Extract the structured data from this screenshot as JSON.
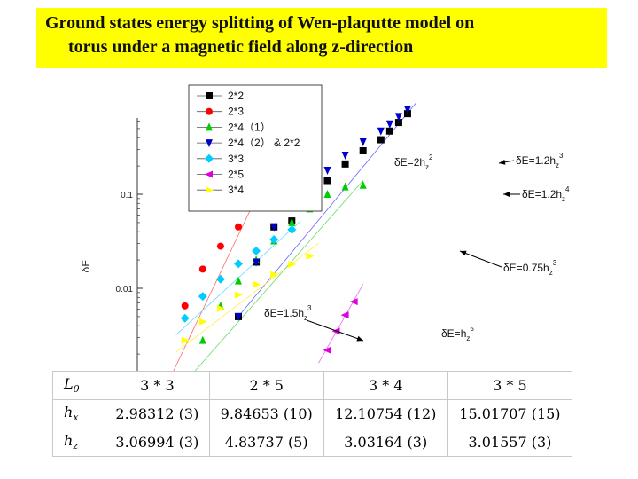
{
  "title": {
    "line1": "Ground states energy splitting of Wen-plaqutte model on",
    "line2": "torus under a magnetic field along z-direction"
  },
  "chart_data": {
    "type": "scatter",
    "yscale": "log",
    "ylabel": "δE",
    "yticks": [
      {
        "value": 0.1,
        "label": "0.1"
      },
      {
        "value": 0.01,
        "label": "0.01"
      }
    ],
    "legend_position": "top-left",
    "series": [
      {
        "name": "2*2",
        "color": "#000000",
        "marker": "square",
        "x": [
          0.05,
          0.06,
          0.07,
          0.08,
          0.09,
          0.1,
          0.11,
          0.12,
          0.13,
          0.135,
          0.14,
          0.145,
          0.15
        ],
        "y": [
          0.005,
          0.019,
          0.045,
          0.052,
          0.085,
          0.14,
          0.21,
          0.29,
          0.38,
          0.47,
          0.58,
          0.72,
          0.9
        ]
      },
      {
        "name": "2*3",
        "color": "#ff0000",
        "marker": "circle",
        "x": [
          0.01,
          0.02,
          0.03,
          0.04,
          0.05,
          0.06,
          0.07
        ],
        "y": [
          0.00095,
          0.0065,
          0.016,
          0.028,
          0.045,
          0.1,
          0.23
        ]
      },
      {
        "name": "2*4（1）",
        "color": "#00cc00",
        "marker": "triangle-up",
        "x": [
          0.02,
          0.03,
          0.04,
          0.05,
          0.06,
          0.07,
          0.08,
          0.09,
          0.1,
          0.11,
          0.12
        ],
        "y": [
          0.001,
          0.0028,
          0.0065,
          0.012,
          0.02,
          0.032,
          0.05,
          0.07,
          0.1,
          0.12,
          0.125
        ]
      },
      {
        "name": "2*4（2） & 2*2",
        "color": "#0000cc",
        "marker": "triangle-down",
        "x": [
          0.05,
          0.06,
          0.07,
          0.08,
          0.09,
          0.1,
          0.11,
          0.12,
          0.13,
          0.135,
          0.14,
          0.145,
          0.15
        ],
        "y": [
          0.005,
          0.019,
          0.045,
          0.08,
          0.12,
          0.18,
          0.26,
          0.36,
          0.47,
          0.56,
          0.67,
          0.8,
          0.95
        ]
      },
      {
        "name": "3*3",
        "color": "#00ccff",
        "marker": "diamond",
        "x": [
          0.02,
          0.03,
          0.04,
          0.05,
          0.06,
          0.07,
          0.08
        ],
        "y": [
          0.0048,
          0.0082,
          0.0125,
          0.0182,
          0.025,
          0.033,
          0.042
        ]
      },
      {
        "name": "2*5",
        "color": "#dd00dd",
        "marker": "triangle-left",
        "x": [
          0.1,
          0.105,
          0.11,
          0.115
        ],
        "y": [
          0.0022,
          0.0035,
          0.0052,
          0.0072
        ]
      },
      {
        "name": "3*4",
        "color": "#ffff00",
        "marker": "triangle-right",
        "x": [
          0.02,
          0.03,
          0.04,
          0.05,
          0.06,
          0.07,
          0.08,
          0.09
        ],
        "y": [
          0.0028,
          0.0044,
          0.0061,
          0.0085,
          0.011,
          0.014,
          0.018,
          0.022
        ]
      }
    ],
    "fit_lines": [
      {
        "color": "#6666ff",
        "from": [
          0.05,
          0.005
        ],
        "to": [
          0.15,
          0.95
        ]
      },
      {
        "color": "#ff6666",
        "from": [
          0.01,
          0.00095
        ],
        "to": [
          0.07,
          0.23
        ]
      },
      {
        "color": "#66ddff",
        "from": [
          0.015,
          0.0032
        ],
        "to": [
          0.085,
          0.052
        ]
      },
      {
        "color": "#ffee44",
        "from": [
          0.015,
          0.0021
        ],
        "to": [
          0.095,
          0.03
        ]
      },
      {
        "color": "#66dd66",
        "from": [
          0.02,
          0.001
        ],
        "to": [
          0.12,
          0.14
        ]
      },
      {
        "color": "#ee66ee",
        "from": [
          0.095,
          0.0016
        ],
        "to": [
          0.12,
          0.011
        ]
      }
    ],
    "annotations": [
      {
        "base": "δE=2h",
        "sub": "z",
        "sup": "2"
      },
      {
        "base": "δE=1.2h",
        "sub": "z",
        "sup": "3"
      },
      {
        "base": "δE=1.2h",
        "sub": "z",
        "sup": "4"
      },
      {
        "base": "δE=0.75h",
        "sub": "z",
        "sup": "3"
      },
      {
        "base": "δE=1.5h",
        "sub": "z",
        "sup": "3"
      },
      {
        "base": "δE=h",
        "sub": "z",
        "sup": "5"
      }
    ]
  },
  "table": {
    "header": {
      "label": "L",
      "label_sub": "0",
      "values": [
        "3 * 3",
        "2 * 5",
        "3 * 4",
        "3 * 5"
      ]
    },
    "rows": [
      {
        "label": "h",
        "label_sub": "x",
        "values": [
          "2.98312 (3)",
          "9.84653 (10)",
          "12.10754 (12)",
          "15.01707 (15)"
        ]
      },
      {
        "label": "h",
        "label_sub": "z",
        "values": [
          "3.06994 (3)",
          "4.83737 (5)",
          "3.03164 (3)",
          "3.01557 (3)"
        ]
      }
    ]
  }
}
